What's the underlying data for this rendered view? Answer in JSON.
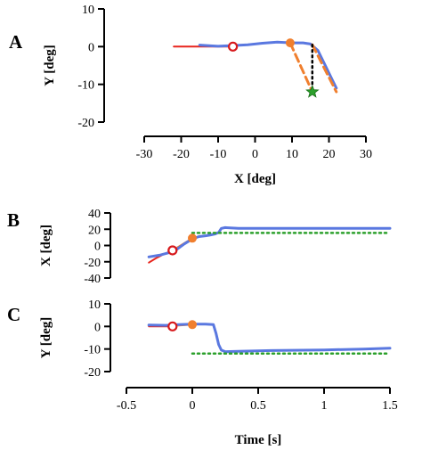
{
  "chart_data": [
    {
      "panel": "A",
      "type": "line",
      "xlabel": "X [deg]",
      "ylabel": "Y [deg]",
      "xlim": [
        -30,
        30
      ],
      "ylim": [
        -20,
        10
      ],
      "xticks": [
        "-30",
        "-20",
        "-10",
        "0",
        "10",
        "20",
        "30"
      ],
      "yticks": [
        "10",
        "0",
        "-10",
        "-20"
      ],
      "series": [
        {
          "role": "target-path-before",
          "color": "#e8251d",
          "style": "solid",
          "x": [
            -22,
            -6
          ],
          "y": [
            0,
            0
          ]
        },
        {
          "role": "eye-trace",
          "color": "#5a78e0",
          "style": "solid",
          "x": [
            -15,
            -10,
            -6,
            -2,
            2,
            6,
            10,
            13,
            15,
            17,
            18,
            19,
            20,
            21,
            22
          ],
          "y": [
            0.4,
            0.1,
            0.3,
            0.5,
            0.9,
            1.2,
            1.0,
            1.0,
            0.7,
            -1.0,
            -3.0,
            -5.0,
            -7.0,
            -9.0,
            -11.0
          ]
        },
        {
          "role": "target-path-after",
          "color": "#f07f2e",
          "style": "dashed",
          "x": [
            9.5,
            15.5
          ],
          "y": [
            1.0,
            -12.0
          ]
        },
        {
          "role": "target-path-after-2",
          "color": "#f07f2e",
          "style": "dashed",
          "x": [
            15.5,
            22
          ],
          "y": [
            0.5,
            -12.0
          ]
        },
        {
          "role": "vertical-offset",
          "color": "#000000",
          "style": "dotted",
          "x": [
            15.5,
            15.5
          ],
          "y": [
            0.5,
            -12.0
          ]
        }
      ],
      "markers": [
        {
          "shape": "open-circle",
          "color": "#d7191c",
          "x": -6,
          "y": 0
        },
        {
          "shape": "filled-circle",
          "color": "#f07f2e",
          "x": 9.5,
          "y": 1.0
        },
        {
          "shape": "star",
          "color": "#2ca02c",
          "x": 15.5,
          "y": -12.0
        }
      ]
    },
    {
      "panel": "B",
      "type": "line",
      "xlabel": "",
      "ylabel": "X [deg]",
      "xlim": [
        -0.5,
        1.5
      ],
      "ylim": [
        -40,
        40
      ],
      "yticks": [
        "40",
        "20",
        "0",
        "-20",
        "-40"
      ],
      "series": [
        {
          "role": "target",
          "color": "#e8251d",
          "style": "solid",
          "x": [
            -0.33,
            -0.28,
            -0.22,
            -0.15
          ],
          "y": [
            -21,
            -16,
            -11,
            -6
          ]
        },
        {
          "role": "target-after",
          "color": "#f07f2e",
          "style": "solid",
          "x": [
            -0.15,
            -0.07,
            0.0
          ],
          "y": [
            -6,
            2,
            9
          ]
        },
        {
          "role": "eye",
          "color": "#5a78e0",
          "style": "solid",
          "x": [
            -0.33,
            -0.25,
            -0.18,
            -0.12,
            -0.06,
            0.0,
            0.05,
            0.1,
            0.14,
            0.17,
            0.2,
            0.22,
            0.25,
            0.35,
            0.6,
            0.9,
            1.2,
            1.5
          ],
          "y": [
            -14,
            -12,
            -9,
            -5,
            2,
            8,
            11,
            12,
            13,
            14,
            16,
            21,
            22,
            21,
            21,
            21,
            21,
            21
          ]
        },
        {
          "role": "final-target",
          "color": "#2ca02c",
          "style": "dotted",
          "x": [
            0.0,
            1.5
          ],
          "y": [
            15.5,
            15.5
          ]
        }
      ],
      "markers": [
        {
          "shape": "open-circle",
          "color": "#d7191c",
          "x": -0.15,
          "y": -6
        },
        {
          "shape": "filled-circle",
          "color": "#f07f2e",
          "x": 0.0,
          "y": 9
        }
      ]
    },
    {
      "panel": "C",
      "type": "line",
      "xlabel": "Time [s]",
      "ylabel": "Y [deg]",
      "xlim": [
        -0.5,
        1.5
      ],
      "ylim": [
        -20,
        10
      ],
      "xticks": [
        "-0.5",
        "0",
        "0.5",
        "1",
        "1.5"
      ],
      "yticks": [
        "10",
        "0",
        "-10",
        "-20"
      ],
      "series": [
        {
          "role": "target",
          "color": "#e8251d",
          "style": "solid",
          "x": [
            -0.33,
            -0.15
          ],
          "y": [
            0,
            0
          ]
        },
        {
          "role": "target-after",
          "color": "#f07f2e",
          "style": "solid",
          "x": [
            -0.15,
            0.0
          ],
          "y": [
            0.2,
            0.8
          ]
        },
        {
          "role": "eye",
          "color": "#5a78e0",
          "style": "solid",
          "x": [
            -0.33,
            -0.2,
            -0.1,
            0.0,
            0.1,
            0.16,
            0.18,
            0.2,
            0.22,
            0.25,
            0.35,
            0.6,
            1.0,
            1.3,
            1.5
          ],
          "y": [
            0.6,
            0.5,
            0.8,
            1.0,
            1.0,
            0.8,
            -3.0,
            -8.0,
            -10.5,
            -11.2,
            -11.0,
            -10.7,
            -10.4,
            -10.0,
            -9.6
          ]
        },
        {
          "role": "final-target",
          "color": "#2ca02c",
          "style": "dotted",
          "x": [
            0.0,
            1.5
          ],
          "y": [
            -12.0,
            -12.0
          ]
        }
      ],
      "markers": [
        {
          "shape": "open-circle",
          "color": "#d7191c",
          "x": -0.15,
          "y": 0
        },
        {
          "shape": "filled-circle",
          "color": "#f07f2e",
          "x": 0.0,
          "y": 0.8
        }
      ]
    }
  ]
}
